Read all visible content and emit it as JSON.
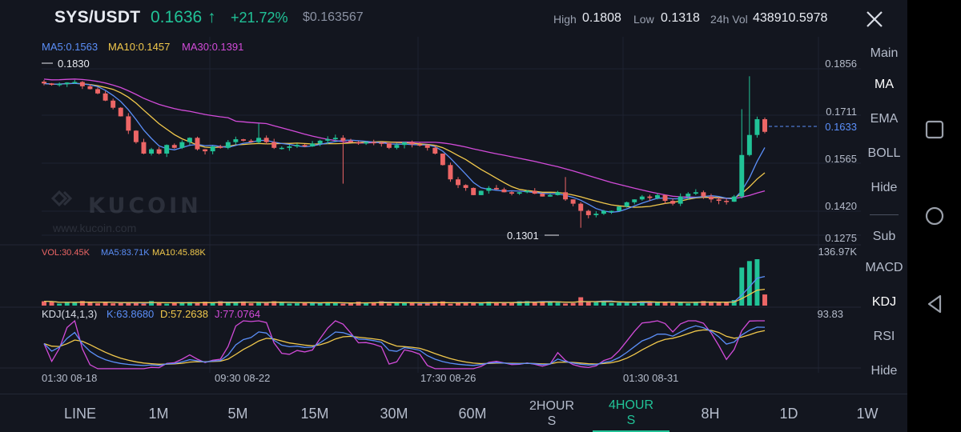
{
  "header": {
    "symbol": "SYS/USDT",
    "last_price": "0.1636",
    "arrow": "↑",
    "change": "+21.72%",
    "usd_price": "$0.163567",
    "high_label": "High",
    "high_value": "0.1808",
    "low_label": "Low",
    "low_value": "0.1318",
    "vol_label": "24h Vol",
    "vol_value": "438910.5978"
  },
  "colors": {
    "up": "#21c397",
    "down": "#ed6666",
    "ma5": "#5b8ff9",
    "ma10": "#f2c94c",
    "ma30": "#d24bd9",
    "background": "#13161f"
  },
  "main_indicators": {
    "ma5": "MA5:0.1563",
    "ma10": "MA10:0.1457",
    "ma30": "MA30:0.1391"
  },
  "price_axis": [
    "0.1856",
    "0.1711",
    "0.1565",
    "0.1420",
    "0.1275"
  ],
  "current_price_tag": "0.1633",
  "max_label": "0.1830",
  "min_label": "0.1301",
  "watermark": {
    "brand": "KUCOIN",
    "url": "www.kucoin.com"
  },
  "volume": {
    "vol": "VOL:30.45K",
    "ma5": "MA5:83.71K",
    "ma10": "MA10:45.88K",
    "axis_max": "136.97K"
  },
  "kdj": {
    "label": "KDJ(14,1,3)",
    "k": "K:63.8680",
    "d": "D:57.2638",
    "j": "J:77.0764",
    "axis_max": "93.83"
  },
  "time_axis": [
    "01:30 08-18",
    "09:30 08-22",
    "17:30 08-26",
    "01:30 08-31"
  ],
  "right_menu": {
    "main": "Main",
    "ma": "MA",
    "ema": "EMA",
    "boll": "BOLL",
    "hide_main": "Hide",
    "sub": "Sub",
    "macd": "MACD",
    "kdj": "KDJ",
    "rsi": "RSI",
    "hide_sub": "Hide"
  },
  "timeframes": [
    "LINE",
    "1M",
    "5M",
    "15M",
    "30M",
    "60M",
    "2HOUR\nS",
    "4HOUR\nS",
    "8H",
    "1D",
    "1W"
  ],
  "active_timeframe": "4HOUR\nS",
  "chart_data": {
    "type": "candlestick",
    "price_range": [
      0.1275,
      0.1856
    ],
    "close_series": [
      0.1805,
      0.18,
      0.1803,
      0.1808,
      0.181,
      0.1795,
      0.1785,
      0.177,
      0.1745,
      0.172,
      0.169,
      0.164,
      0.16,
      0.156,
      0.1575,
      0.156,
      0.159,
      0.158,
      0.16,
      0.1615,
      0.1575,
      0.1568,
      0.1585,
      0.158,
      0.16,
      0.161,
      0.1605,
      0.16,
      0.1615,
      0.16,
      0.158,
      0.158,
      0.1585,
      0.159,
      0.1585,
      0.1595,
      0.1605,
      0.161,
      0.1615,
      0.1605,
      0.16,
      0.1595,
      0.16,
      0.1598,
      0.1596,
      0.158,
      0.159,
      0.16,
      0.1592,
      0.159,
      0.158,
      0.156,
      0.152,
      0.147,
      0.145,
      0.144,
      0.1415,
      0.143,
      0.144,
      0.1435,
      0.1425,
      0.142,
      0.1425,
      0.143,
      0.142,
      0.141,
      0.1415,
      0.1425,
      0.14,
      0.1385,
      0.136,
      0.1345,
      0.135,
      0.136,
      0.136,
      0.1375,
      0.139,
      0.14,
      0.141,
      0.1405,
      0.1415,
      0.1395,
      0.1385,
      0.141,
      0.142,
      0.1425,
      0.141,
      0.14,
      0.1395,
      0.1392,
      0.141,
      0.1555,
      0.1625,
      0.168,
      0.1636
    ],
    "volume_axis_max": "136.97K",
    "kdj_axis_max": 93.83
  }
}
